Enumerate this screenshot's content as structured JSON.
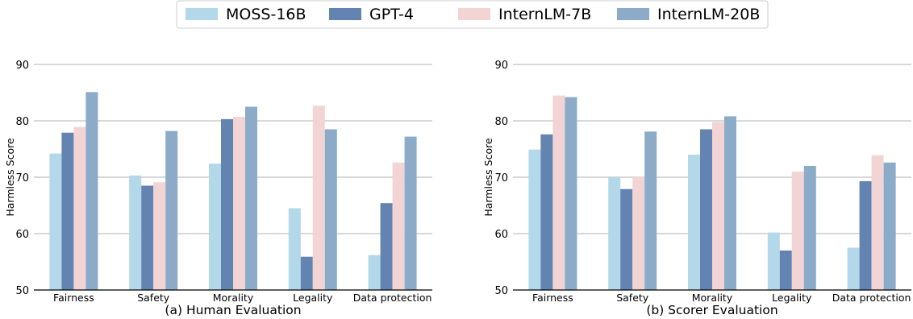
{
  "legend": {
    "position": "top-center",
    "entries": [
      {
        "name": "MOSS-16B",
        "color": "#b3d8ea"
      },
      {
        "name": "GPT-4",
        "color": "#6383b0"
      },
      {
        "name": "InternLM-7B",
        "color": "#f3d4d4"
      },
      {
        "name": "InternLM-20B",
        "color": "#8babc9"
      }
    ]
  },
  "chart_data": [
    {
      "type": "bar",
      "caption": "(a) Human Evaluation",
      "ylabel": "Harmless Score",
      "ylim": [
        50,
        90
      ],
      "yticks": [
        50,
        60,
        70,
        80,
        90
      ],
      "grid": "horizontal",
      "categories": [
        "Fairness",
        "Safety",
        "Morality",
        "Legality",
        "Data protection"
      ],
      "series": [
        {
          "name": "MOSS-16B",
          "values": [
            74.2,
            70.3,
            72.4,
            64.5,
            56.2
          ]
        },
        {
          "name": "GPT-4",
          "values": [
            77.9,
            68.5,
            80.3,
            55.9,
            65.4
          ]
        },
        {
          "name": "InternLM-7B",
          "values": [
            78.9,
            69.1,
            80.7,
            82.7,
            72.6
          ]
        },
        {
          "name": "InternLM-20B",
          "values": [
            85.1,
            78.2,
            82.5,
            78.5,
            77.2
          ]
        }
      ]
    },
    {
      "type": "bar",
      "caption": "(b) Scorer Evaluation",
      "ylabel": "Harmless Score",
      "ylim": [
        50,
        90
      ],
      "yticks": [
        50,
        60,
        70,
        80,
        90
      ],
      "grid": "horizontal",
      "categories": [
        "Fairness",
        "Safety",
        "Morality",
        "Legality",
        "Data protection"
      ],
      "series": [
        {
          "name": "MOSS-16B",
          "values": [
            74.9,
            70.0,
            74.0,
            60.2,
            57.5
          ]
        },
        {
          "name": "GPT-4",
          "values": [
            77.6,
            67.9,
            78.5,
            57.0,
            69.3
          ]
        },
        {
          "name": "InternLM-7B",
          "values": [
            84.5,
            70.0,
            79.8,
            71.0,
            73.9
          ]
        },
        {
          "name": "InternLM-20B",
          "values": [
            84.2,
            78.1,
            80.8,
            72.0,
            72.6
          ]
        }
      ]
    }
  ]
}
